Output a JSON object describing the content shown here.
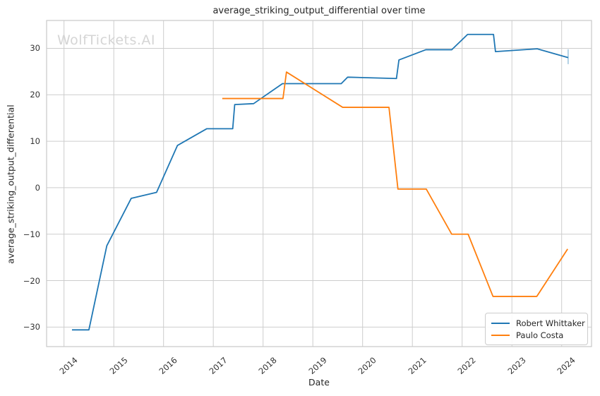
{
  "figure": {
    "watermark": "WolfTickets.AI"
  },
  "chart_data": {
    "type": "line",
    "title": "average_striking_output_differential over time",
    "xlabel": "Date",
    "ylabel": "average_striking_output_differential",
    "xlim": [
      2013.65,
      2024.6
    ],
    "ylim": [
      -34.2,
      36.0
    ],
    "xticks": [
      2014,
      2015,
      2016,
      2017,
      2018,
      2019,
      2020,
      2021,
      2022,
      2023,
      2024
    ],
    "yticks": [
      -30,
      -20,
      -10,
      0,
      10,
      20,
      30
    ],
    "grid": true,
    "legend_position": "lower right",
    "series": [
      {
        "name": "Robert Whittaker",
        "color": "#1f77b4",
        "points": [
          [
            2014.16,
            -30.6
          ],
          [
            2014.5,
            -30.6
          ],
          [
            2014.86,
            -12.5
          ],
          [
            2015.35,
            -2.3
          ],
          [
            2015.86,
            -1.0
          ],
          [
            2016.28,
            9.1
          ],
          [
            2016.87,
            12.7
          ],
          [
            2017.39,
            12.7
          ],
          [
            2017.43,
            17.9
          ],
          [
            2017.81,
            18.1
          ],
          [
            2018.39,
            22.4
          ],
          [
            2019.57,
            22.4
          ],
          [
            2019.7,
            23.8
          ],
          [
            2020.68,
            23.5
          ],
          [
            2020.73,
            27.5
          ],
          [
            2021.27,
            29.7
          ],
          [
            2021.79,
            29.7
          ],
          [
            2022.11,
            33.0
          ],
          [
            2022.63,
            33.0
          ],
          [
            2022.67,
            29.3
          ],
          [
            2023.51,
            29.9
          ],
          [
            2024.13,
            28.0
          ]
        ]
      },
      {
        "name": "Paulo Costa",
        "color": "#ff7f0e",
        "points": [
          [
            2017.18,
            19.2
          ],
          [
            2018.4,
            19.2
          ],
          [
            2018.47,
            24.9
          ],
          [
            2019.6,
            17.3
          ],
          [
            2020.53,
            17.3
          ],
          [
            2020.71,
            -0.3
          ],
          [
            2021.28,
            -0.3
          ],
          [
            2021.79,
            -10.0
          ],
          [
            2022.12,
            -10.0
          ],
          [
            2022.62,
            -23.4
          ],
          [
            2023.5,
            -23.4
          ],
          [
            2024.12,
            -13.2
          ]
        ]
      }
    ],
    "end_tick": {
      "x": 2024.13,
      "y_from": 26.6,
      "y_to": 29.8,
      "color": "rgba(31,119,180,0.45)"
    },
    "colors": {
      "grid": "#cdcdcd",
      "spine": "#c9c9c9",
      "text": "#262626",
      "tick_text": "#333333",
      "watermark": "#d5d5d5",
      "background": "#ffffff"
    }
  }
}
